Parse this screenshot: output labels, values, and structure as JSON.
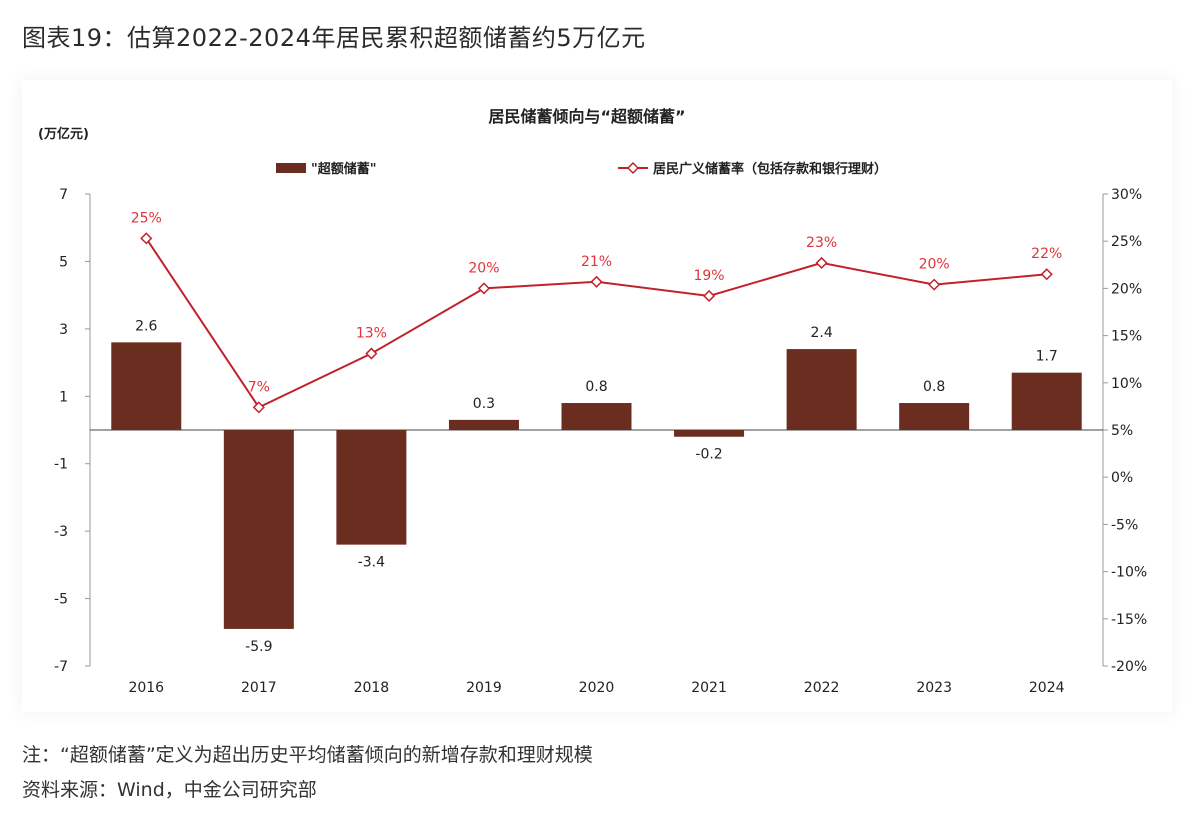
{
  "figure_title": "图表19：估算2022-2024年居民累积超额储蓄约5万亿元",
  "note": "注：“超额储蓄”定义为超出历史平均储蓄倾向的新增存款和理财规模",
  "source": "资料来源：Wind，中金公司研究部",
  "colors": {
    "bar": "#6b2d20",
    "line": "#c0222a",
    "label_line": "#e0343a",
    "text": "#222222"
  },
  "chart_data": {
    "type": "bar+line",
    "title": "居民储蓄倾向与“超额储蓄”",
    "left_unit": "(万亿元)",
    "categories": [
      "2016",
      "2017",
      "2018",
      "2019",
      "2020",
      "2021",
      "2022",
      "2023",
      "2024"
    ],
    "series": [
      {
        "name": "\"超额储蓄\"",
        "type": "bar",
        "axis": "left",
        "values": [
          2.6,
          -5.9,
          -3.4,
          0.3,
          0.8,
          -0.2,
          2.4,
          0.8,
          1.7
        ],
        "labels": [
          "2.6",
          "-5.9",
          "-3.4",
          "0.3",
          "0.8",
          "-0.2",
          "2.4",
          "0.8",
          "1.7"
        ]
      },
      {
        "name": "居民广义储蓄率（包括存款和银行理财）",
        "type": "line",
        "axis": "right",
        "values": [
          25.3,
          7.4,
          13.1,
          20.0,
          20.7,
          19.2,
          22.7,
          20.4,
          21.5
        ],
        "labels": [
          "25%",
          "7%",
          "13%",
          "20%",
          "21%",
          "19%",
          "23%",
          "20%",
          "22%"
        ]
      }
    ],
    "y_left": {
      "lim": [
        -7,
        7
      ],
      "ticks": [
        "7",
        "5",
        "3",
        "1",
        "-1",
        "-3",
        "-5",
        "-7"
      ],
      "tick_values": [
        7,
        5,
        3,
        1,
        -1,
        -3,
        -5,
        -7
      ]
    },
    "y_right": {
      "lim": [
        -20,
        30
      ],
      "ticks": [
        "30%",
        "25%",
        "20%",
        "15%",
        "10%",
        "5%",
        "0%",
        "-5%",
        "-10%",
        "-15%",
        "-20%"
      ],
      "tick_values": [
        30,
        25,
        20,
        15,
        10,
        5,
        0,
        -5,
        -10,
        -15,
        -20
      ]
    },
    "legend": "top"
  }
}
